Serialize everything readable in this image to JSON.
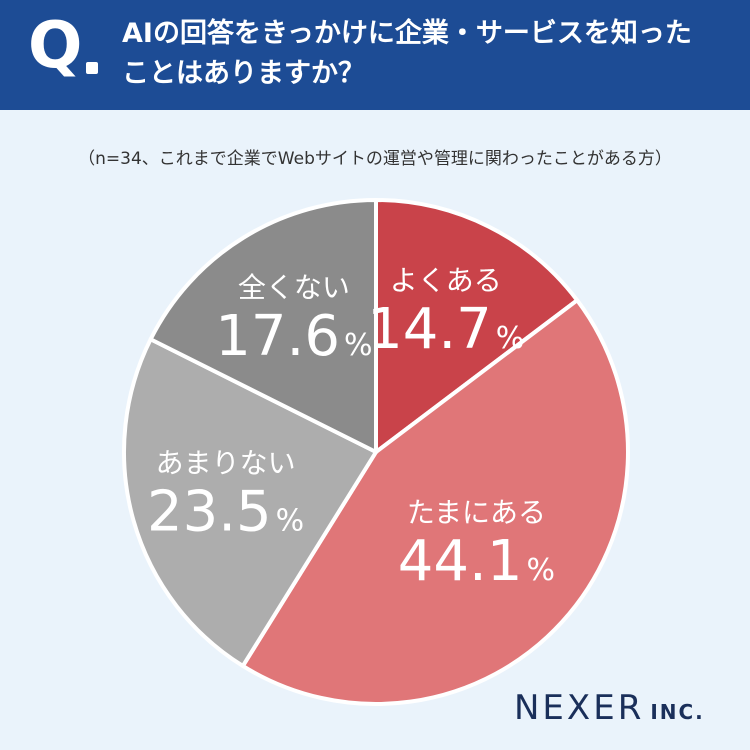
{
  "question": {
    "mark": "Q",
    "lines": [
      "AIの回答をきっかけに企業・サービスを知った",
      "ことはありますか？"
    ]
  },
  "note": "（n=34、これまで企業でWebサイトの運営や管理に関わったことがある方）",
  "brand": {
    "name": "NEXER",
    "suffix": "INC."
  },
  "colors": {
    "header": "#1d4c95",
    "background": "#eaf3fb"
  },
  "chart_data": {
    "type": "pie",
    "n": 34,
    "slices": [
      {
        "label": "よくある",
        "value": 14.7,
        "display": "14.7",
        "unit": "%",
        "color": "#c9434a"
      },
      {
        "label": "たまにある",
        "value": 44.1,
        "display": "44.1",
        "unit": "%",
        "color": "#e07678"
      },
      {
        "label": "あまりない",
        "value": 23.5,
        "display": "23.5",
        "unit": "%",
        "color": "#adadad"
      },
      {
        "label": "全くない",
        "value": 17.6,
        "display": "17.6",
        "unit": "%",
        "color": "#8b8b8b"
      }
    ]
  }
}
